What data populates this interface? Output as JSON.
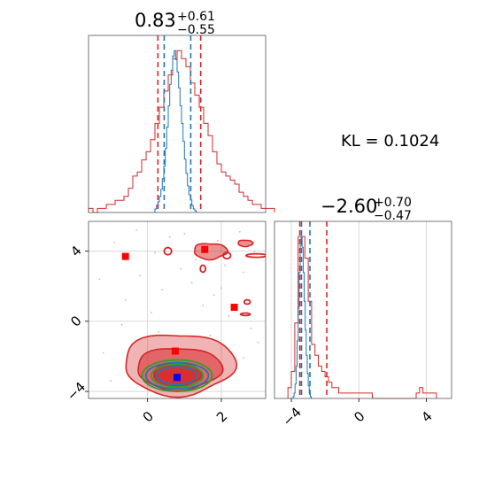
{
  "chart_data": {
    "type": "corner",
    "annotation": "KL = 0.1024",
    "colors": {
      "red": "#d62728",
      "blue": "#1f77b4",
      "green": "#2ca02c",
      "marker_red": "#ff0000",
      "marker_blue": "#0000ff"
    },
    "grid": true,
    "panels": [
      {
        "id": "hist-x",
        "type": "histogram",
        "title": {
          "value": "0.83",
          "upper": "+0.61",
          "lower": "−0.55"
        },
        "xlim": [
          -1.6,
          3.2
        ],
        "quantile_lines": {
          "red": [
            0.28,
            1.44
          ],
          "blue": [
            0.45,
            1.17
          ]
        },
        "series": [
          {
            "name": "",
            "color": "red",
            "bin_edges_start": -1.6,
            "bin_width": 0.12,
            "counts": [
              1,
              0,
              1,
              1,
              2,
              2,
              3,
              3,
              4,
              6,
              9,
              10,
              13,
              15,
              18,
              22,
              26,
              30,
              34,
              38,
              40,
              38,
              36,
              32,
              29,
              26,
              22,
              19,
              15,
              12,
              10,
              9,
              8,
              7,
              5,
              4,
              3,
              2,
              2,
              1,
              1,
              1
            ]
          },
          {
            "name": "",
            "color": "blue",
            "bin_edges_start": 0.2,
            "bin_width": 0.04,
            "counts": [
              2,
              4,
              6,
              9,
              13,
              19,
              26,
              36,
              48,
              60,
              72,
              80,
              88,
              91,
              86,
              79,
              70,
              60,
              50,
              40,
              30,
              22,
              15,
              10,
              7,
              4,
              2,
              1
            ]
          }
        ]
      },
      {
        "id": "hist-y",
        "type": "histogram",
        "title": {
          "value": "−2.60",
          "upper": "+0.70",
          "lower": "−0.47"
        },
        "xlim": [
          -5,
          5.5
        ],
        "xticks": [
          -4,
          0,
          4
        ],
        "xtick_labels": [
          "−4",
          "0",
          "4"
        ],
        "quantile_lines": {
          "red": [
            -3.5,
            -1.9
          ],
          "blue": [
            -3.4,
            -2.9
          ]
        },
        "series": [
          {
            "name": "",
            "color": "red",
            "bin_edges_start": -4.2,
            "bin_width": 0.2,
            "counts": [
              2,
              5,
              14,
              30,
              30,
              26,
              18,
              10,
              8,
              6,
              5,
              4,
              3,
              2,
              2,
              1,
              1,
              1,
              1,
              1,
              1,
              1,
              1,
              1,
              1,
              0,
              0,
              0,
              0,
              0,
              0,
              0,
              0,
              0,
              0,
              0,
              0,
              0,
              1,
              2,
              1,
              1,
              1,
              1
            ]
          },
          {
            "name": "",
            "color": "blue",
            "bin_edges_start": -3.9,
            "bin_width": 0.06,
            "counts": [
              1,
              3,
              8,
              18,
              32,
              50,
              70,
              85,
              90,
              84,
              70,
              54,
              38,
              24,
              14,
              7,
              3,
              1
            ]
          }
        ]
      },
      {
        "id": "scatter-2d",
        "type": "scatter_contour",
        "xlim": [
          -1.6,
          3.2
        ],
        "ylim": [
          -4.4,
          5.7
        ],
        "xticks": [
          0,
          2
        ],
        "xtick_labels": [
          "0",
          "2"
        ],
        "yticks": [
          -4,
          0,
          4
        ],
        "ytick_labels": [
          "−4",
          "0",
          "4"
        ],
        "markers": [
          {
            "x": -0.6,
            "y": 3.7,
            "color": "marker_red"
          },
          {
            "x": 1.55,
            "y": 4.1,
            "color": "marker_red"
          },
          {
            "x": 2.35,
            "y": 0.8,
            "color": "marker_red"
          },
          {
            "x": 0.75,
            "y": -1.7,
            "color": "marker_red"
          },
          {
            "x": 0.8,
            "y": -3.2,
            "color": "marker_blue"
          }
        ],
        "scatter_points": [
          [
            -0.9,
            4.5
          ],
          [
            -0.3,
            5.2
          ],
          [
            0.2,
            3.9
          ],
          [
            0.6,
            4.8
          ],
          [
            1.0,
            5.0
          ],
          [
            1.3,
            3.5
          ],
          [
            1.9,
            4.6
          ],
          [
            2.1,
            3.2
          ],
          [
            2.5,
            5.1
          ],
          [
            2.9,
            4.0
          ],
          [
            -0.2,
            2.6
          ],
          [
            0.4,
            1.8
          ],
          [
            1.2,
            2.2
          ],
          [
            1.8,
            1.5
          ],
          [
            2.6,
            2.8
          ],
          [
            2.2,
            0.3
          ],
          [
            1.5,
            0.9
          ],
          [
            0.1,
            0.5
          ],
          [
            -0.6,
            1.2
          ],
          [
            2.8,
            -0.4
          ],
          [
            -1.2,
            -1.8
          ],
          [
            -1.0,
            -3.4
          ],
          [
            2.6,
            -2.1
          ],
          [
            3.0,
            -1.2
          ],
          [
            0.3,
            -0.6
          ],
          [
            1.7,
            -0.8
          ],
          [
            -0.7,
            -0.2
          ],
          [
            2.0,
            1.9
          ],
          [
            -1.3,
            2.4
          ],
          [
            0.9,
            3.0
          ]
        ],
        "contours": [
          {
            "color": "red",
            "filled": true,
            "opacity": 0.35,
            "cx": 0.85,
            "cy": -2.45,
            "rx": 1.5,
            "ry": 1.75,
            "wobble": 0.09
          },
          {
            "color": "red",
            "filled": true,
            "opacity": 0.55,
            "cx": 0.85,
            "cy": -2.7,
            "rx": 1.15,
            "ry": 1.2,
            "wobble": 0.08
          },
          {
            "color": "red",
            "filled": true,
            "opacity": 0.85,
            "cx": 0.8,
            "cy": -3.05,
            "rx": 0.65,
            "ry": 0.65,
            "wobble": 0.06
          },
          {
            "color": "green",
            "filled": false,
            "opacity": 1,
            "cx": 0.8,
            "cy": -3.1,
            "rx": 0.95,
            "ry": 0.9,
            "wobble": 0.0
          },
          {
            "color": "green",
            "filled": false,
            "opacity": 1,
            "cx": 0.8,
            "cy": -3.1,
            "rx": 0.7,
            "ry": 0.65,
            "wobble": 0.0
          },
          {
            "color": "blue",
            "filled": false,
            "opacity": 1,
            "cx": 0.8,
            "cy": -3.1,
            "rx": 0.85,
            "ry": 0.75,
            "wobble": 0.0
          },
          {
            "color": "blue",
            "filled": false,
            "opacity": 1,
            "cx": 0.8,
            "cy": -3.1,
            "rx": 0.55,
            "ry": 0.5,
            "wobble": 0.0
          },
          {
            "color": "red",
            "filled": true,
            "opacity": 0.5,
            "cx": 1.7,
            "cy": 4.0,
            "rx": 0.45,
            "ry": 0.45,
            "wobble": 0.12
          },
          {
            "color": "red",
            "filled": true,
            "opacity": 0.5,
            "cx": 2.65,
            "cy": 4.45,
            "rx": 0.2,
            "ry": 0.18,
            "wobble": 0.1
          },
          {
            "color": "red",
            "filled": false,
            "opacity": 1,
            "cx": 2.95,
            "cy": 3.75,
            "rx": 0.28,
            "ry": 0.1,
            "wobble": 0.0
          },
          {
            "color": "red",
            "filled": false,
            "opacity": 1,
            "cx": 0.55,
            "cy": 4.0,
            "rx": 0.1,
            "ry": 0.2,
            "wobble": 0.0
          },
          {
            "color": "red",
            "filled": false,
            "opacity": 1,
            "cx": 1.5,
            "cy": 3.0,
            "rx": 0.07,
            "ry": 0.2,
            "wobble": 0.0
          },
          {
            "color": "red",
            "filled": false,
            "opacity": 1,
            "cx": 2.15,
            "cy": 3.75,
            "rx": 0.1,
            "ry": 0.18,
            "wobble": 0.0
          },
          {
            "color": "red",
            "filled": false,
            "opacity": 1,
            "cx": 2.7,
            "cy": 1.1,
            "rx": 0.08,
            "ry": 0.12,
            "wobble": 0.0
          },
          {
            "color": "red",
            "filled": false,
            "opacity": 1,
            "cx": 2.65,
            "cy": 0.4,
            "rx": 0.13,
            "ry": 0.07,
            "wobble": 0.0
          }
        ]
      }
    ]
  }
}
